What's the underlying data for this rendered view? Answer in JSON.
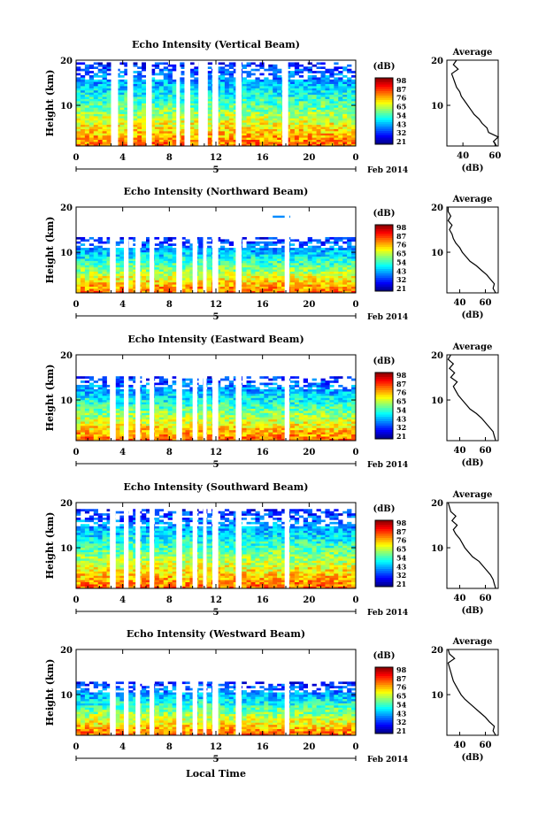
{
  "figure": {
    "x_axis_label": "Local Time",
    "date_label": "Feb 2014",
    "day_label": "5",
    "colorbar_unit": "(dB)",
    "profile_title": "Average",
    "profile_xlabel": "(dB)",
    "height_label": "Height (km)"
  },
  "chart_data": [
    {
      "type": "heatmap",
      "title": "Echo Intensity (Vertical Beam)",
      "ylabel": "Height (km)",
      "xlabel": "Local Time",
      "x_ticks": [
        "0",
        "4",
        "8",
        "12",
        "16",
        "20",
        "0"
      ],
      "xlim": [
        0,
        24
      ],
      "y_ticks": [
        "20",
        "10"
      ],
      "ylim": [
        1,
        20
      ],
      "colorbar": {
        "label": "(dB)",
        "ticks": [
          "98",
          "87",
          "76",
          "65",
          "54",
          "43",
          "32",
          "21"
        ],
        "range": [
          21,
          98
        ]
      },
      "data_top_km": 19.0,
      "gaps_hours": [
        [
          3.0,
          3.6
        ],
        [
          4.4,
          4.9
        ],
        [
          6.0,
          6.5
        ],
        [
          8.6,
          8.9
        ],
        [
          9.3,
          9.8
        ],
        [
          10.5,
          11.3
        ],
        [
          11.7,
          12.2
        ],
        [
          13.7,
          14.2
        ],
        [
          17.7,
          18.2
        ]
      ],
      "profile": {
        "title": "Average",
        "xlabel": "(dB)",
        "x_ticks": [
          "40",
          "60"
        ],
        "xlim": [
          30,
          62
        ],
        "y_ticks": [
          "20",
          "10"
        ],
        "ylim": [
          1,
          20
        ],
        "height_km": [
          1,
          2,
          3,
          4,
          5,
          6,
          7,
          8,
          9,
          10,
          11,
          12,
          13,
          14,
          15,
          16,
          17,
          18,
          19,
          20
        ],
        "db": [
          61,
          59,
          62,
          56,
          55,
          52,
          50,
          47,
          45,
          43,
          41,
          39,
          38,
          36,
          35,
          34,
          33,
          37,
          34,
          36
        ]
      }
    },
    {
      "type": "heatmap",
      "title": "Echo Intensity (Northward Beam)",
      "ylabel": "Height (km)",
      "xlabel": "Local Time",
      "x_ticks": [
        "0",
        "4",
        "8",
        "12",
        "16",
        "20",
        "0"
      ],
      "xlim": [
        0,
        24
      ],
      "y_ticks": [
        "20",
        "10"
      ],
      "ylim": [
        1,
        20
      ],
      "colorbar": {
        "label": "(dB)",
        "ticks": [
          "98",
          "87",
          "76",
          "65",
          "54",
          "43",
          "32",
          "21"
        ],
        "range": [
          21,
          98
        ]
      },
      "data_top_km": 13.0,
      "gaps_hours": [
        [
          2.9,
          3.4
        ],
        [
          4.1,
          4.5
        ],
        [
          5.1,
          5.5
        ],
        [
          6.3,
          6.7
        ],
        [
          8.6,
          9.1
        ],
        [
          10.0,
          10.4
        ],
        [
          10.9,
          11.2
        ],
        [
          11.7,
          12.2
        ],
        [
          13.7,
          14.2
        ],
        [
          17.9,
          18.3
        ]
      ],
      "profile": {
        "title": "Average",
        "xlabel": "(dB)",
        "x_ticks": [
          "40",
          "60"
        ],
        "xlim": [
          30,
          70
        ],
        "y_ticks": [
          "20",
          "10"
        ],
        "ylim": [
          1,
          20
        ],
        "height_km": [
          1,
          2,
          3,
          4,
          5,
          6,
          7,
          8,
          9,
          10,
          11,
          12,
          13,
          14,
          15,
          16,
          17,
          18,
          19,
          20
        ],
        "db": [
          68,
          66,
          67,
          64,
          61,
          57,
          53,
          48,
          45,
          42,
          40,
          37,
          35,
          34,
          32,
          34,
          31,
          33,
          31,
          31
        ]
      }
    },
    {
      "type": "heatmap",
      "title": "Echo Intensity (Eastward Beam)",
      "ylabel": "Height (km)",
      "xlabel": "Local Time",
      "x_ticks": [
        "0",
        "4",
        "8",
        "12",
        "16",
        "20",
        "0"
      ],
      "xlim": [
        0,
        24
      ],
      "y_ticks": [
        "20",
        "10"
      ],
      "ylim": [
        1,
        20
      ],
      "colorbar": {
        "label": "(dB)",
        "ticks": [
          "98",
          "87",
          "76",
          "65",
          "54",
          "43",
          "32",
          "21"
        ],
        "range": [
          21,
          98
        ]
      },
      "data_top_km": 15.0,
      "gaps_hours": [
        [
          2.9,
          3.4
        ],
        [
          4.1,
          4.5
        ],
        [
          5.1,
          5.5
        ],
        [
          6.3,
          6.7
        ],
        [
          8.6,
          9.1
        ],
        [
          10.0,
          10.4
        ],
        [
          10.9,
          11.2
        ],
        [
          11.7,
          12.2
        ],
        [
          13.7,
          14.2
        ],
        [
          17.9,
          18.3
        ]
      ],
      "profile": {
        "title": "Average",
        "xlabel": "(dB)",
        "x_ticks": [
          "40",
          "60"
        ],
        "xlim": [
          30,
          70
        ],
        "y_ticks": [
          "20",
          "10"
        ],
        "ylim": [
          1,
          20
        ],
        "height_km": [
          1,
          2,
          3,
          4,
          5,
          6,
          7,
          8,
          9,
          10,
          11,
          12,
          13,
          14,
          15,
          16,
          17,
          18,
          19,
          20
        ],
        "db": [
          68,
          67,
          66,
          63,
          60,
          57,
          53,
          48,
          45,
          42,
          39,
          37,
          35,
          38,
          33,
          36,
          32,
          35,
          31,
          33
        ]
      }
    },
    {
      "type": "heatmap",
      "title": "Echo Intensity (Southward Beam)",
      "ylabel": "Height (km)",
      "xlabel": "Local Time",
      "x_ticks": [
        "0",
        "4",
        "8",
        "12",
        "16",
        "20",
        "0"
      ],
      "xlim": [
        0,
        24
      ],
      "y_ticks": [
        "20",
        "10"
      ],
      "ylim": [
        1,
        20
      ],
      "colorbar": {
        "label": "(dB)",
        "ticks": [
          "98",
          "87",
          "76",
          "65",
          "54",
          "43",
          "32",
          "21"
        ],
        "range": [
          21,
          98
        ]
      },
      "data_top_km": 18.0,
      "gaps_hours": [
        [
          2.9,
          3.4
        ],
        [
          4.1,
          4.5
        ],
        [
          5.1,
          5.5
        ],
        [
          6.3,
          6.7
        ],
        [
          8.6,
          9.1
        ],
        [
          10.0,
          10.4
        ],
        [
          10.9,
          11.2
        ],
        [
          11.7,
          12.2
        ],
        [
          13.7,
          14.2
        ],
        [
          17.9,
          18.3
        ]
      ],
      "profile": {
        "title": "Average",
        "xlabel": "(dB)",
        "x_ticks": [
          "40",
          "60"
        ],
        "xlim": [
          30,
          70
        ],
        "y_ticks": [
          "20",
          "10"
        ],
        "ylim": [
          1,
          20
        ],
        "height_km": [
          1,
          2,
          3,
          4,
          5,
          6,
          7,
          8,
          9,
          10,
          11,
          12,
          13,
          14,
          15,
          16,
          17,
          18,
          19,
          20
        ],
        "db": [
          68,
          67,
          66,
          64,
          61,
          58,
          55,
          50,
          47,
          44,
          42,
          40,
          37,
          35,
          38,
          34,
          37,
          33,
          32,
          31
        ]
      }
    },
    {
      "type": "heatmap",
      "title": "Echo Intensity (Westward Beam)",
      "ylabel": "Height (km)",
      "xlabel": "Local Time",
      "x_ticks": [
        "0",
        "4",
        "8",
        "12",
        "16",
        "20",
        "0"
      ],
      "xlim": [
        0,
        24
      ],
      "y_ticks": [
        "20",
        "10"
      ],
      "ylim": [
        1,
        20
      ],
      "colorbar": {
        "label": "(dB)",
        "ticks": [
          "98",
          "87",
          "76",
          "65",
          "54",
          "43",
          "32",
          "21"
        ],
        "range": [
          21,
          98
        ]
      },
      "data_top_km": 12.5,
      "gaps_hours": [
        [
          2.9,
          3.4
        ],
        [
          4.1,
          4.5
        ],
        [
          5.1,
          5.5
        ],
        [
          6.3,
          6.7
        ],
        [
          8.6,
          9.1
        ],
        [
          10.0,
          10.4
        ],
        [
          10.9,
          11.2
        ],
        [
          11.7,
          12.2
        ],
        [
          13.7,
          14.2
        ],
        [
          17.9,
          18.3
        ]
      ],
      "profile": {
        "title": "Average",
        "xlabel": "(dB)",
        "x_ticks": [
          "40",
          "60"
        ],
        "xlim": [
          30,
          70
        ],
        "y_ticks": [
          "20",
          "10"
        ],
        "ylim": [
          1,
          20
        ],
        "height_km": [
          1,
          2,
          3,
          4,
          5,
          6,
          7,
          8,
          9,
          10,
          11,
          12,
          13,
          14,
          15,
          16,
          17,
          18,
          19,
          20
        ],
        "db": [
          68,
          66,
          67,
          63,
          60,
          56,
          52,
          48,
          44,
          41,
          39,
          37,
          35,
          34,
          33,
          32,
          31,
          36,
          32,
          31
        ]
      }
    }
  ]
}
